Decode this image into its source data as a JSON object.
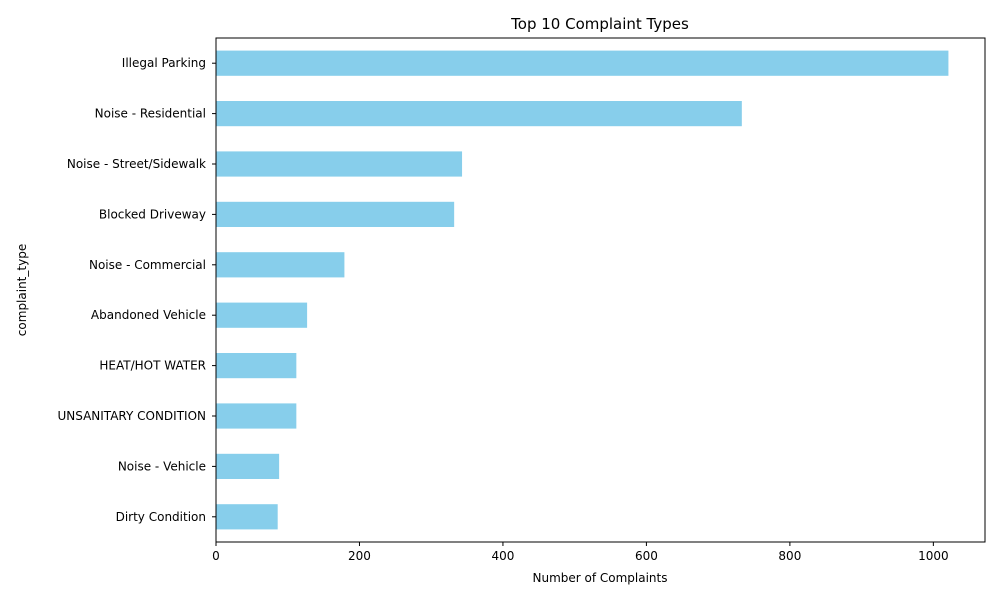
{
  "chart_data": {
    "type": "bar",
    "orientation": "horizontal",
    "title": "Top 10 Complaint Types",
    "xlabel": "Number of Complaints",
    "ylabel": "complaint_type",
    "categories": [
      "Illegal Parking",
      "Noise - Residential",
      "Noise - Street/Sidewalk",
      "Blocked Driveway",
      "Noise - Commercial",
      "Abandoned Vehicle",
      "HEAT/HOT WATER",
      "UNSANITARY CONDITION",
      "Noise - Vehicle",
      "Dirty Condition"
    ],
    "values": [
      1021,
      733,
      343,
      332,
      179,
      127,
      112,
      112,
      88,
      86
    ],
    "xlim": [
      0,
      1072
    ],
    "xticks": [
      0,
      200,
      400,
      600,
      800,
      1000
    ],
    "grid": false,
    "legend": "none",
    "bar_color": "#87CEEB"
  }
}
